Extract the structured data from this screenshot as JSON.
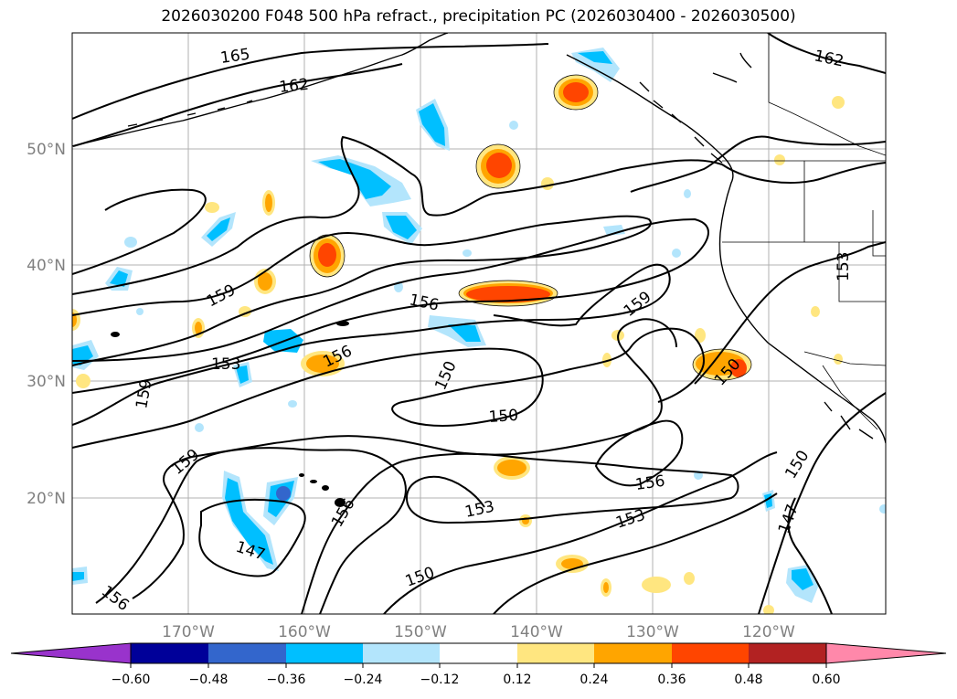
{
  "title": "2026030200 F048 500 hPa refract., precipitation PC (2026030400 - 2026030500)",
  "map": {
    "lon_labels": [
      "170°W",
      "160°W",
      "150°W",
      "140°W",
      "130°W",
      "120°W"
    ],
    "lat_labels": [
      "50°N",
      "40°N",
      "30°N",
      "20°N"
    ],
    "contour_labels": [
      "165",
      "162",
      "162",
      "159",
      "156",
      "153",
      "159",
      "156",
      "150",
      "153",
      "150",
      "150",
      "159",
      "156",
      "147",
      "156",
      "156",
      "153",
      "150",
      "147",
      "156",
      "150",
      "153"
    ]
  },
  "colorbar": {
    "colors": [
      "#9933cc",
      "#000099",
      "#3366cc",
      "#00bfff",
      "#b3e5fc",
      "#ffffff",
      "#ffe680",
      "#ffa500",
      "#ff4500",
      "#b22222",
      "#ff88aa"
    ],
    "ticks": [
      "−0.60",
      "−0.48",
      "−0.36",
      "−0.24",
      "−0.12",
      "0.12",
      "0.24",
      "0.36",
      "0.48",
      "0.60"
    ]
  }
}
